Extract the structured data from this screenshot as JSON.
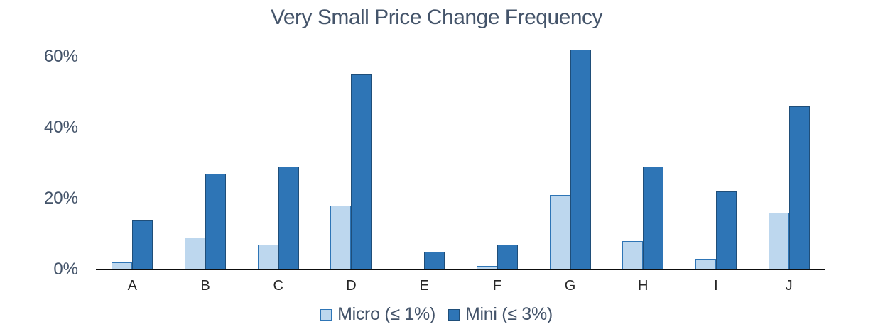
{
  "chart_data": {
    "type": "bar",
    "title": "Very Small Price Change Frequency",
    "categories": [
      "A",
      "B",
      "C",
      "D",
      "E",
      "F",
      "G",
      "H",
      "I",
      "J"
    ],
    "series": [
      {
        "name": "Micro (≤ 1%)",
        "values": [
          2,
          9,
          7,
          18,
          0,
          1,
          21,
          8,
          3,
          16
        ],
        "fill": "#BDD7EE",
        "border": "#2E75B6"
      },
      {
        "name": "Mini (≤ 3%)",
        "values": [
          14,
          27,
          29,
          55,
          5,
          7,
          62,
          29,
          22,
          46
        ],
        "fill": "#2E75B6",
        "border": "#1F4E79"
      }
    ],
    "xlabel": "",
    "ylabel": "",
    "ylim": [
      0,
      64
    ],
    "yticks": [
      0,
      20,
      40,
      60
    ],
    "ytick_labels": [
      "0%",
      "20%",
      "40%",
      "60%"
    ],
    "grid": true,
    "legend_position": "bottom",
    "colors": {
      "title_text": "#44546A",
      "y_axis_label_text": "#44546A",
      "category_label_text": "#262626",
      "gridline": "#0d0d0d",
      "background": "#ffffff"
    }
  }
}
